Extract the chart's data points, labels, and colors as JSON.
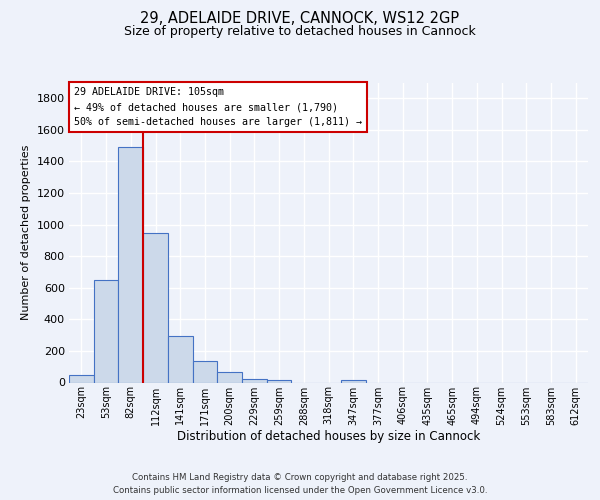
{
  "title_line1": "29, ADELAIDE DRIVE, CANNOCK, WS12 2GP",
  "title_line2": "Size of property relative to detached houses in Cannock",
  "xlabel": "Distribution of detached houses by size in Cannock",
  "ylabel": "Number of detached properties",
  "bar_labels": [
    "23sqm",
    "53sqm",
    "82sqm",
    "112sqm",
    "141sqm",
    "171sqm",
    "200sqm",
    "229sqm",
    "259sqm",
    "288sqm",
    "318sqm",
    "347sqm",
    "377sqm",
    "406sqm",
    "435sqm",
    "465sqm",
    "494sqm",
    "524sqm",
    "553sqm",
    "583sqm",
    "612sqm"
  ],
  "bar_values": [
    50,
    650,
    1490,
    950,
    295,
    135,
    65,
    20,
    15,
    0,
    0,
    15,
    0,
    0,
    0,
    0,
    0,
    0,
    0,
    0,
    0
  ],
  "bar_color": "#ccd9ea",
  "bar_edge_color": "#4472c4",
  "red_line_x": 2.5,
  "ylim_max": 1900,
  "yticks": [
    0,
    200,
    400,
    600,
    800,
    1000,
    1200,
    1400,
    1600,
    1800
  ],
  "annotation_title": "29 ADELAIDE DRIVE: 105sqm",
  "annotation_line1": "← 49% of detached houses are smaller (1,790)",
  "annotation_line2": "50% of semi-detached houses are larger (1,811) →",
  "footer_line1": "Contains HM Land Registry data © Crown copyright and database right 2025.",
  "footer_line2": "Contains public sector information licensed under the Open Government Licence v3.0.",
  "background_color": "#eef2fa",
  "grid_color": "#ffffff",
  "red_line_color": "#cc0000",
  "annot_box_edge": "#cc0000",
  "annot_box_face": "#ffffff"
}
